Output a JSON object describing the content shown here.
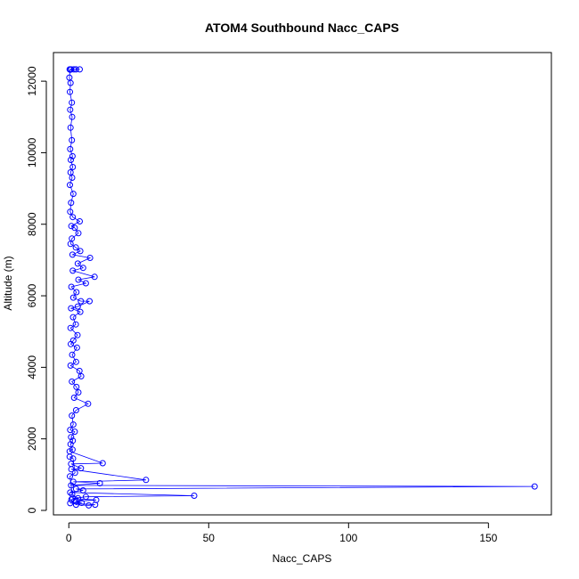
{
  "chart_data": {
    "type": "scatter",
    "title": "ATOM4 Southbound Nacc_CAPS",
    "xlabel": "Nacc_CAPS",
    "ylabel": "Altitude (m)",
    "xlim": [
      -5.5,
      172.5
    ],
    "ylim": [
      -125,
      12800
    ],
    "xticks": [
      0,
      50,
      100,
      150
    ],
    "yticks": [
      0,
      2000,
      4000,
      6000,
      8000,
      10000,
      12000
    ],
    "grid": false,
    "marker": "open-circle",
    "connected": true,
    "color": "#0000ff",
    "series": [
      {
        "points": [
          [
            0.3,
            12330
          ],
          [
            0.8,
            12330
          ],
          [
            1.8,
            12330
          ],
          [
            2.6,
            12330
          ],
          [
            3.9,
            12330
          ],
          [
            0.5,
            12320
          ],
          [
            0.2,
            12100
          ],
          [
            0.6,
            11950
          ],
          [
            0.4,
            11700
          ],
          [
            1.1,
            11400
          ],
          [
            0.5,
            11200
          ],
          [
            1.2,
            11000
          ],
          [
            0.6,
            10700
          ],
          [
            1.1,
            10350
          ],
          [
            0.5,
            10100
          ],
          [
            1.3,
            9900
          ],
          [
            0.7,
            9800
          ],
          [
            1.4,
            9600
          ],
          [
            0.6,
            9450
          ],
          [
            1.2,
            9300
          ],
          [
            0.4,
            9100
          ],
          [
            1.6,
            8850
          ],
          [
            0.8,
            8600
          ],
          [
            0.5,
            8350
          ],
          [
            1.4,
            8200
          ],
          [
            3.9,
            8080
          ],
          [
            0.9,
            7950
          ],
          [
            2.1,
            7900
          ],
          [
            3.4,
            7750
          ],
          [
            1.1,
            7600
          ],
          [
            0.6,
            7450
          ],
          [
            2.5,
            7350
          ],
          [
            4.1,
            7250
          ],
          [
            1.3,
            7150
          ],
          [
            7.6,
            7060
          ],
          [
            3.2,
            6900
          ],
          [
            5.1,
            6780
          ],
          [
            1.4,
            6700
          ],
          [
            9.2,
            6530
          ],
          [
            3.4,
            6450
          ],
          [
            6.1,
            6350
          ],
          [
            0.9,
            6250
          ],
          [
            2.7,
            6100
          ],
          [
            1.6,
            5950
          ],
          [
            4.3,
            5850
          ],
          [
            7.4,
            5850
          ],
          [
            3.2,
            5700
          ],
          [
            0.8,
            5650
          ],
          [
            4.1,
            5550
          ],
          [
            1.5,
            5400
          ],
          [
            2.5,
            5200
          ],
          [
            0.6,
            5100
          ],
          [
            3.1,
            4900
          ],
          [
            1.6,
            4750
          ],
          [
            0.7,
            4650
          ],
          [
            2.9,
            4550
          ],
          [
            1.2,
            4350
          ],
          [
            2.6,
            4150
          ],
          [
            0.6,
            4050
          ],
          [
            3.8,
            3900
          ],
          [
            4.4,
            3750
          ],
          [
            1.1,
            3600
          ],
          [
            2.7,
            3450
          ],
          [
            3.4,
            3300
          ],
          [
            1.9,
            3150
          ],
          [
            6.9,
            2980
          ],
          [
            2.6,
            2800
          ],
          [
            1.1,
            2650
          ],
          [
            1.6,
            2400
          ],
          [
            0.5,
            2250
          ],
          [
            2.1,
            2200
          ],
          [
            0.8,
            2050
          ],
          [
            1.4,
            1950
          ],
          [
            0.6,
            1850
          ],
          [
            1.3,
            1700
          ],
          [
            0.3,
            1650
          ],
          [
            12.1,
            1320
          ],
          [
            0.8,
            1300
          ],
          [
            4.3,
            1180
          ],
          [
            0.9,
            1150
          ],
          [
            27.6,
            850
          ],
          [
            1.6,
            800
          ],
          [
            11.1,
            760
          ],
          [
            0.8,
            700
          ],
          [
            166.5,
            670
          ],
          [
            2.6,
            600
          ],
          [
            5.1,
            560
          ],
          [
            0.5,
            500
          ],
          [
            44.8,
            410
          ],
          [
            6.1,
            380
          ],
          [
            1.3,
            330
          ],
          [
            9.8,
            290
          ],
          [
            2.5,
            250
          ],
          [
            4.6,
            210
          ],
          [
            0.5,
            200
          ],
          [
            9.4,
            160
          ],
          [
            7.1,
            140
          ],
          [
            2.6,
            160
          ],
          [
            0.9,
            300
          ],
          [
            3.3,
            340
          ],
          [
            1.2,
            450
          ],
          [
            0.4,
            950
          ],
          [
            2.2,
            1050
          ],
          [
            1.5,
            1450
          ],
          [
            0.3,
            1500
          ]
        ]
      }
    ]
  }
}
